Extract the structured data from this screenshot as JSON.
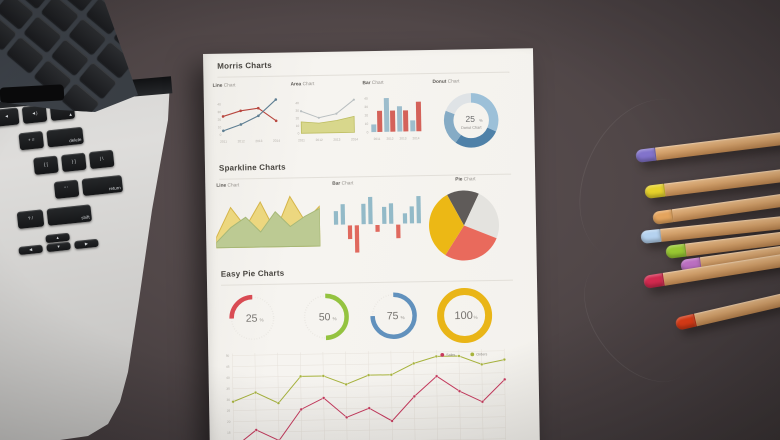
{
  "scene": {
    "background_color": "#4e4446",
    "paper_color": "#f4f2ed",
    "description": "printed charts report on dark desk between laptop keyboard and colored pencils"
  },
  "paper": {
    "sections": {
      "morris": "Morris Charts",
      "sparkline": "Sparkline Charts",
      "easy_pie": "Easy Pie Charts"
    },
    "charts": {
      "morris_line": {
        "t1": "Line",
        "t2": "Chart"
      },
      "morris_area": {
        "t1": "Area",
        "t2": "Chart"
      },
      "morris_bar": {
        "t1": "Bar",
        "t2": "Chart"
      },
      "morris_donut": {
        "t1": "Donut",
        "t2": "Chart"
      },
      "spark_line": {
        "t1": "Line",
        "t2": "Chart"
      },
      "spark_bar": {
        "t1": "Bar",
        "t2": "Chart"
      },
      "spark_pie": {
        "t1": "Pie",
        "t2": "Chart"
      }
    }
  },
  "chart_data": [
    {
      "id": "morris_line",
      "type": "morris-line",
      "title": "Line Chart",
      "x": [
        "2011",
        "2012",
        "2013",
        "2014"
      ],
      "ylim": [
        0,
        50
      ],
      "yticks": [
        0,
        10,
        20,
        30,
        40
      ],
      "series": [
        {
          "name": "red-series",
          "color": "#b8473f",
          "values": [
            24,
            31,
            34,
            17
          ]
        },
        {
          "name": "dark-series",
          "color": "#5f7f93",
          "values": [
            5,
            13,
            24,
            45
          ]
        }
      ]
    },
    {
      "id": "morris_area",
      "type": "morris-area",
      "title": "Area Chart",
      "x": [
        "2011",
        "2012",
        "2013",
        "2014"
      ],
      "ylim": [
        0,
        50
      ],
      "yticks": [
        0,
        10,
        20,
        30,
        40
      ],
      "line": {
        "color": "#b9bfc1",
        "values": [
          29,
          20,
          25,
          43
        ]
      },
      "area": {
        "fill": "#d8d78c",
        "stroke": "#bdbd60",
        "values": [
          15,
          13,
          16,
          21
        ]
      }
    },
    {
      "id": "morris_bar",
      "type": "morris-bar",
      "title": "Bar Chart",
      "x": [
        "2011",
        "2012",
        "2013",
        "2014"
      ],
      "ylim": [
        0,
        45
      ],
      "yticks": [
        0,
        10,
        20,
        30,
        40
      ],
      "series": [
        {
          "name": "blue-bars",
          "color": "#9dbdcc",
          "values": [
            9,
            40,
            30,
            13
          ]
        },
        {
          "name": "red-bars",
          "color": "#d4625a",
          "values": [
            25,
            25,
            25,
            35
          ]
        }
      ]
    },
    {
      "id": "morris_donut",
      "type": "donut",
      "title": "Donut Chart",
      "center_value": "25",
      "center_unit": "%",
      "center_label": "Donut Chart",
      "segments": [
        {
          "color": "#9cc0d8",
          "value": 32
        },
        {
          "color": "#4f81a8",
          "value": 28
        },
        {
          "color": "#85abc5",
          "value": 21
        },
        {
          "color": "#dfe3e6",
          "value": 19
        }
      ]
    },
    {
      "id": "spark_line",
      "type": "spark-area",
      "title": "Line Chart",
      "series": [
        {
          "name": "yellow-area",
          "fill": "#ecd77f",
          "stroke": "#d5b54a",
          "values": [
            2,
            8,
            4,
            9,
            3,
            10,
            5,
            8
          ]
        },
        {
          "name": "green-area",
          "fill": "#bcca93",
          "stroke": "#a6b878",
          "values": [
            1,
            4,
            6,
            3,
            7,
            4,
            6,
            7.5
          ]
        }
      ]
    },
    {
      "id": "spark_bar",
      "type": "spark-bar",
      "title": "Bar Chart",
      "positive_color": "#93bac8",
      "negative_color": "#e0695e",
      "values": [
        4,
        6,
        -4,
        -8,
        6,
        8,
        -2,
        5,
        6,
        -4,
        3,
        5,
        8
      ]
    },
    {
      "id": "spark_pie",
      "type": "pie",
      "title": "Pie Chart",
      "start_angle": -28,
      "slices": [
        {
          "color": "#5f5b59",
          "value": 15
        },
        {
          "color": "#e4e3df",
          "value": 24
        },
        {
          "color": "#e96a5c",
          "value": 28
        },
        {
          "color": "#ecb815",
          "value": 33
        }
      ]
    },
    {
      "id": "easy_pie",
      "type": "easy-pie-row",
      "items": [
        {
          "value": "25",
          "unit": "%",
          "percent": 25,
          "color": "#d94b53",
          "direction": "ccw"
        },
        {
          "value": "50",
          "unit": "%",
          "percent": 50,
          "color": "#94c340",
          "direction": "cw"
        },
        {
          "value": "75",
          "unit": "%",
          "percent": 75,
          "color": "#6191bd",
          "direction": "cw"
        },
        {
          "value": "100",
          "unit": "%",
          "percent": 100,
          "color": "#e9b517",
          "direction": "cw"
        }
      ]
    },
    {
      "id": "flot_line",
      "type": "line-grid",
      "legend": [
        {
          "label": "Sales",
          "color": "#c73a5e"
        },
        {
          "label": "Orders",
          "color": "#a7b33d"
        }
      ],
      "ylim": [
        0,
        55
      ],
      "yticks": [
        5,
        10,
        15,
        20,
        25,
        30,
        35,
        40,
        45,
        50
      ],
      "x_points": 13,
      "series": [
        {
          "name": "Orders",
          "color": "#a7b33d",
          "values": [
            29,
            33,
            28,
            40,
            40,
            36,
            40,
            40,
            45,
            48,
            48,
            44,
            46
          ]
        },
        {
          "name": "Sales",
          "color": "#c73a5e",
          "values": [
            8,
            16,
            11,
            25,
            30,
            21,
            25,
            19,
            30,
            39,
            32,
            27,
            37
          ]
        }
      ]
    }
  ],
  "laptop": {
    "key_rows": [
      [
        "vol-down",
        "vol-up",
        "eject"
      ],
      [
        "+ =",
        "delete"
      ],
      [
        "{ [",
        "} ]",
        "| \\"
      ],
      [
        "\" '",
        "return"
      ],
      [
        "? /",
        "shift"
      ],
      [
        "left",
        "up",
        "down",
        "right"
      ]
    ]
  },
  "pencils": [
    {
      "name": "violet",
      "cap_color": "#8273cb"
    },
    {
      "name": "yellow",
      "cap_color": "#e6d22b"
    },
    {
      "name": "sandy-orange",
      "cap_color": "#e5a55e"
    },
    {
      "name": "light-blue",
      "cap_color": "#b5d2ef"
    },
    {
      "name": "lime-green",
      "cap_color": "#9bcb33"
    },
    {
      "name": "orchid",
      "cap_color": "#c273c8"
    },
    {
      "name": "crimson",
      "cap_color": "#d62a50"
    },
    {
      "name": "red-orange",
      "cap_color": "#e03d17"
    }
  ]
}
